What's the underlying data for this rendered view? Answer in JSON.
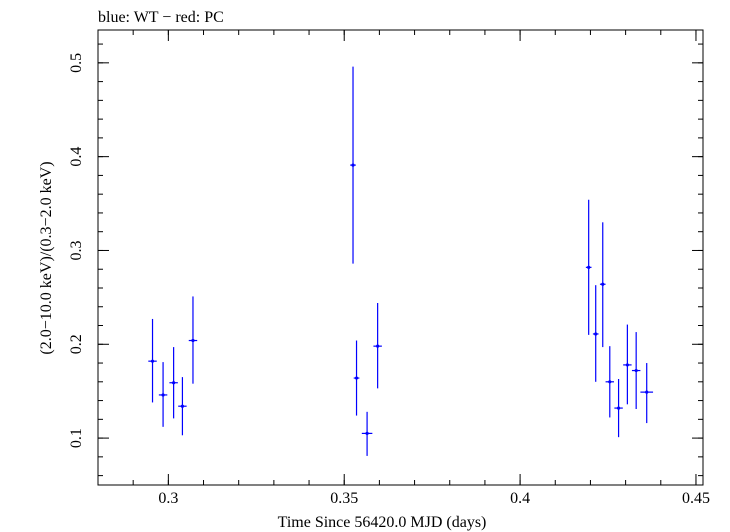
{
  "chart_data": {
    "type": "scatter",
    "title": "blue: WT − red: PC",
    "xlabel": "Time Since 56420.0 MJD (days)",
    "ylabel": "(2.0−10.0 keV)/(0.3−2.0 keV)",
    "xlim": [
      0.28,
      0.452
    ],
    "ylim": [
      0.05,
      0.535
    ],
    "x_major_ticks": [
      0.3,
      0.35,
      0.4,
      0.45
    ],
    "x_tick_labels": [
      "0.3",
      "0.35",
      "0.4",
      "0.45"
    ],
    "x_minor_step": 0.01,
    "y_major_ticks": [
      0.1,
      0.2,
      0.3,
      0.4,
      0.5
    ],
    "y_tick_labels": [
      "0.1",
      "0.2",
      "0.3",
      "0.4",
      "0.5"
    ],
    "y_minor_step": 0.02,
    "grid": false,
    "series": [
      {
        "name": "WT",
        "color": "#0000ff",
        "points": [
          {
            "x": 0.2955,
            "y": 0.182,
            "ylo": 0.138,
            "yhi": 0.227,
            "xerr": 0.0012
          },
          {
            "x": 0.2985,
            "y": 0.146,
            "ylo": 0.112,
            "yhi": 0.181,
            "xerr": 0.0012
          },
          {
            "x": 0.3015,
            "y": 0.159,
            "ylo": 0.121,
            "yhi": 0.197,
            "xerr": 0.0012
          },
          {
            "x": 0.304,
            "y": 0.134,
            "ylo": 0.103,
            "yhi": 0.165,
            "xerr": 0.0012
          },
          {
            "x": 0.307,
            "y": 0.204,
            "ylo": 0.158,
            "yhi": 0.251,
            "xerr": 0.0012
          },
          {
            "x": 0.3525,
            "y": 0.391,
            "ylo": 0.286,
            "yhi": 0.496,
            "xerr": 0.0008
          },
          {
            "x": 0.3535,
            "y": 0.164,
            "ylo": 0.124,
            "yhi": 0.204,
            "xerr": 0.0008
          },
          {
            "x": 0.3565,
            "y": 0.105,
            "ylo": 0.081,
            "yhi": 0.128,
            "xerr": 0.0015
          },
          {
            "x": 0.3595,
            "y": 0.198,
            "ylo": 0.153,
            "yhi": 0.244,
            "xerr": 0.0012
          },
          {
            "x": 0.4195,
            "y": 0.282,
            "ylo": 0.21,
            "yhi": 0.354,
            "xerr": 0.0008
          },
          {
            "x": 0.4215,
            "y": 0.211,
            "ylo": 0.16,
            "yhi": 0.263,
            "xerr": 0.0008
          },
          {
            "x": 0.4235,
            "y": 0.264,
            "ylo": 0.197,
            "yhi": 0.33,
            "xerr": 0.0008
          },
          {
            "x": 0.4255,
            "y": 0.16,
            "ylo": 0.122,
            "yhi": 0.198,
            "xerr": 0.0012
          },
          {
            "x": 0.428,
            "y": 0.132,
            "ylo": 0.101,
            "yhi": 0.163,
            "xerr": 0.0012
          },
          {
            "x": 0.4305,
            "y": 0.178,
            "ylo": 0.136,
            "yhi": 0.221,
            "xerr": 0.0012
          },
          {
            "x": 0.433,
            "y": 0.172,
            "ylo": 0.131,
            "yhi": 0.213,
            "xerr": 0.0012
          },
          {
            "x": 0.436,
            "y": 0.149,
            "ylo": 0.116,
            "yhi": 0.18,
            "xerr": 0.0018
          }
        ]
      }
    ]
  }
}
